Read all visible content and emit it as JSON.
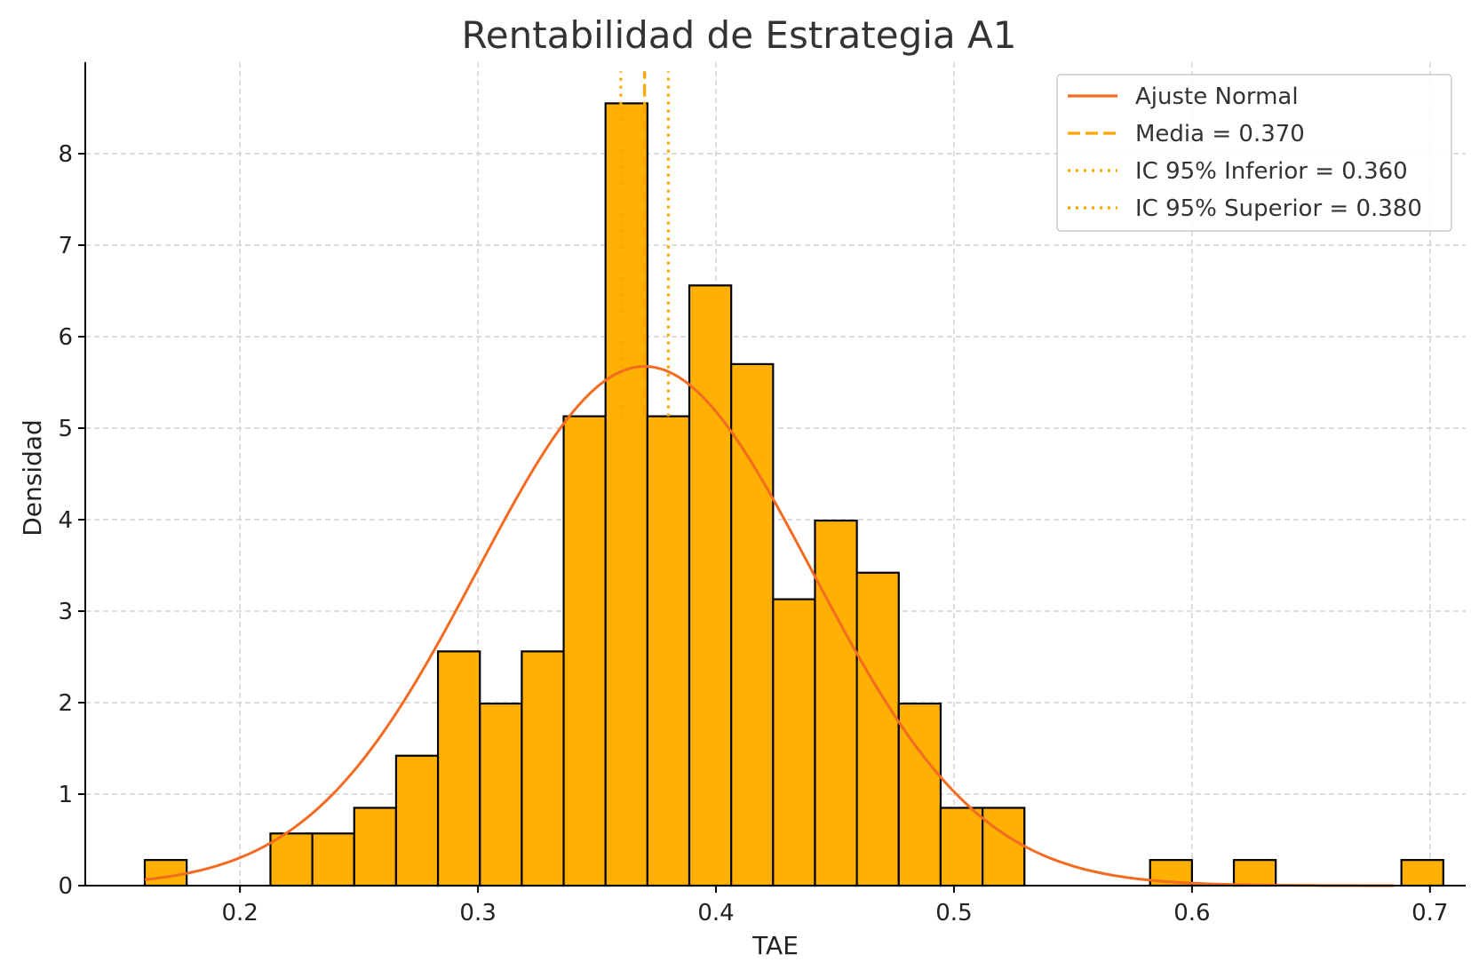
{
  "chart_data": {
    "type": "histogram",
    "title": "Rentabilidad de Estrategia A1",
    "xlabel": "TAE",
    "ylabel": "Densidad",
    "xlim": [
      0.135,
      0.715
    ],
    "ylim": [
      0,
      9
    ],
    "xticks": [
      0.2,
      0.3,
      0.4,
      0.5,
      0.6,
      0.7
    ],
    "xtick_labels": [
      "0.2",
      "0.3",
      "0.4",
      "0.5",
      "0.6",
      "0.7"
    ],
    "yticks": [
      0,
      1,
      2,
      3,
      4,
      5,
      6,
      7,
      8
    ],
    "ytick_labels": [
      "0",
      "1",
      "2",
      "3",
      "4",
      "5",
      "6",
      "7",
      "8"
    ],
    "grid": true,
    "bin_start": 0.16,
    "bin_width": 0.0176,
    "densities": [
      0.28,
      0,
      0,
      0.57,
      0.57,
      0.85,
      1.42,
      2.56,
      1.99,
      2.56,
      5.13,
      8.55,
      5.13,
      6.56,
      5.7,
      3.13,
      3.99,
      3.42,
      1.99,
      0.85,
      0.85,
      0,
      0,
      0,
      0.28,
      0,
      0.28,
      0,
      0,
      0,
      0.28
    ],
    "bar_color": "#ffb000",
    "bar_edge_color": "#000000",
    "normal_fit": {
      "label": "Ajuste Normal",
      "mean": 0.37,
      "std": 0.0703,
      "color": "#f26b21",
      "x_range": [
        0.16,
        0.685
      ]
    },
    "mean_line": {
      "label": "Media = 0.370",
      "value": 0.37,
      "color": "#ffa500",
      "style": "dashed"
    },
    "ci_lines": [
      {
        "label": "IC 95% Inferior = 0.360",
        "value": 0.36,
        "color": "#ffa500",
        "style": "dotted"
      },
      {
        "label": "IC 95% Superior = 0.380",
        "value": 0.38,
        "color": "#ffa500",
        "style": "dotted"
      }
    ],
    "vline_y_range": [
      5.13,
      8.9
    ],
    "legend_position": "top-right",
    "legend": [
      "Ajuste Normal",
      "Media = 0.370",
      "IC 95% Inferior = 0.360",
      "IC 95% Superior = 0.380"
    ]
  }
}
